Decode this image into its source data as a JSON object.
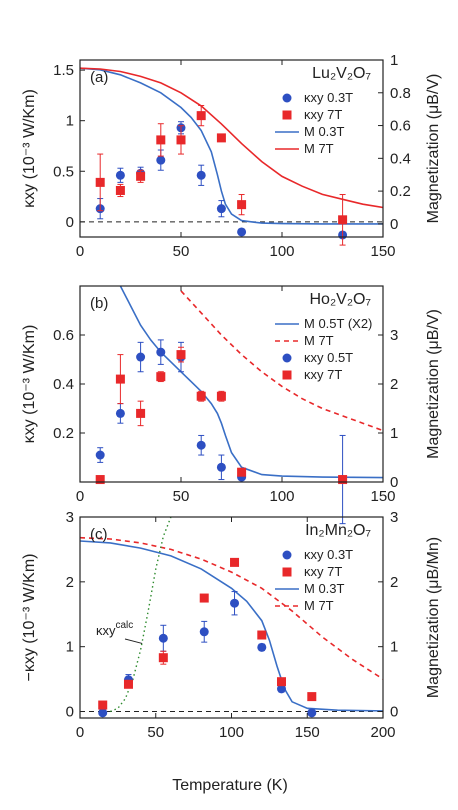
{
  "figure": {
    "xlabel": "Temperature (K)"
  },
  "chart_data": [
    {
      "type": "scatter",
      "panel_label": "(a)",
      "title": "Lu₂V₂O₇",
      "xlim": [
        0,
        150
      ],
      "ylim": [
        -0.15,
        1.6
      ],
      "y2lim": [
        -0.08,
        1.0
      ],
      "ylabel": "κxy (10⁻³ W/Km)",
      "y2label": "Magnetization (μB/V)",
      "xticks": [
        "0",
        "50",
        "100",
        "150"
      ],
      "yticks": [
        "0",
        "0.5",
        "1",
        "1.5"
      ],
      "y2ticks": [
        "0",
        "0.2",
        "0.4",
        "0.6",
        "0.8",
        "1"
      ],
      "zero_line": true,
      "legend_position": "top-right",
      "series": [
        {
          "name": "κxy 0.3T",
          "kind": "points",
          "marker": "circle",
          "color": "#2d4fc2",
          "axis": "left",
          "x": [
            10,
            20,
            30,
            40,
            50,
            60,
            70,
            80,
            130
          ],
          "y": [
            0.13,
            0.46,
            0.48,
            0.61,
            0.93,
            0.46,
            0.13,
            -0.1,
            -0.13
          ],
          "err": [
            0.1,
            0.07,
            0.06,
            0.1,
            0.06,
            0.1,
            0.08,
            0,
            0
          ]
        },
        {
          "name": "κxy 7T",
          "kind": "points",
          "marker": "square",
          "color": "#e8282a",
          "axis": "left",
          "x": [
            10,
            20,
            30,
            40,
            50,
            60,
            70,
            80,
            130
          ],
          "y": [
            0.39,
            0.31,
            0.45,
            0.81,
            0.81,
            1.05,
            0.83,
            0.17,
            0.02
          ],
          "err": [
            0.28,
            0.06,
            0.06,
            0.16,
            0.14,
            0.1,
            0,
            0.1,
            0.25
          ]
        },
        {
          "name": "M 0.3T",
          "kind": "line",
          "color": "#3a6fc6",
          "dash": false,
          "axis": "right",
          "x": [
            0,
            10,
            20,
            30,
            40,
            50,
            55,
            60,
            65,
            68,
            70,
            72,
            75,
            80,
            90,
            100,
            120,
            150
          ],
          "y": [
            0.95,
            0.94,
            0.91,
            0.86,
            0.8,
            0.71,
            0.65,
            0.57,
            0.44,
            0.3,
            0.2,
            0.12,
            0.06,
            0.02,
            0.005,
            0.002,
            0.0,
            0.0
          ]
        },
        {
          "name": "M 7T",
          "kind": "line",
          "color": "#e8282a",
          "dash": false,
          "axis": "right",
          "x": [
            0,
            10,
            20,
            30,
            40,
            50,
            60,
            70,
            80,
            90,
            100,
            110,
            120,
            130,
            140,
            150
          ],
          "y": [
            0.95,
            0.945,
            0.93,
            0.9,
            0.86,
            0.8,
            0.72,
            0.61,
            0.49,
            0.38,
            0.29,
            0.23,
            0.18,
            0.15,
            0.12,
            0.1
          ]
        }
      ]
    },
    {
      "type": "scatter",
      "panel_label": "(b)",
      "title": "Ho₂V₂O₇",
      "xlim": [
        0,
        150
      ],
      "ylim": [
        0,
        0.8
      ],
      "y2lim": [
        0,
        4.0
      ],
      "ylabel": "κxy (10⁻³ W/Km)",
      "y2label": "Magnetization (μB/V)",
      "xticks": [
        "0",
        "50",
        "100",
        "150"
      ],
      "yticks": [
        "0.2",
        "0.4",
        "0.6"
      ],
      "y2ticks": [
        "0",
        "1",
        "2",
        "3"
      ],
      "zero_line": false,
      "legend_position": "top-right",
      "series": [
        {
          "name": "M 0.5T (X2)",
          "kind": "line",
          "color": "#3a6fc6",
          "dash": false,
          "axis": "right",
          "x": [
            20,
            25,
            30,
            35,
            40,
            45,
            50,
            55,
            60,
            65,
            68,
            70,
            72,
            75,
            80,
            90,
            100,
            120,
            150
          ],
          "y": [
            4.0,
            3.6,
            3.2,
            2.9,
            2.65,
            2.45,
            2.25,
            2.05,
            1.85,
            1.6,
            1.4,
            1.2,
            0.95,
            0.6,
            0.3,
            0.15,
            0.12,
            0.1,
            0.09
          ]
        },
        {
          "name": "M 7T",
          "kind": "line",
          "color": "#e8282a",
          "dash": true,
          "axis": "right",
          "x": [
            50,
            60,
            70,
            80,
            90,
            100,
            110,
            120,
            130,
            140,
            150
          ],
          "y": [
            3.9,
            3.45,
            3.0,
            2.6,
            2.25,
            1.95,
            1.7,
            1.5,
            1.35,
            1.2,
            1.05
          ]
        },
        {
          "name": "κxy 0.5T",
          "kind": "points",
          "marker": "circle",
          "color": "#2d4fc2",
          "axis": "left",
          "x": [
            10,
            20,
            30,
            40,
            50,
            60,
            70,
            80,
            130
          ],
          "y": [
            0.11,
            0.28,
            0.51,
            0.53,
            0.51,
            0.15,
            0.06,
            0.02,
            0.01
          ],
          "err": [
            0.03,
            0.04,
            0.06,
            0.05,
            0.06,
            0.04,
            0.05,
            0,
            0.18
          ]
        },
        {
          "name": "κxy 7T",
          "kind": "points",
          "marker": "square",
          "color": "#e8282a",
          "axis": "left",
          "x": [
            10,
            20,
            30,
            40,
            50,
            60,
            70,
            80,
            130
          ],
          "y": [
            0.01,
            0.42,
            0.28,
            0.43,
            0.52,
            0.35,
            0.35,
            0.04,
            0.01
          ],
          "err": [
            0,
            0.1,
            0.05,
            0.02,
            0.03,
            0.02,
            0.02,
            0,
            0
          ]
        }
      ]
    },
    {
      "type": "scatter",
      "panel_label": "(c)",
      "title": "In₂Mn₂O₇",
      "xlim": [
        0,
        200
      ],
      "ylim": [
        -0.1,
        3.0
      ],
      "y2lim": [
        -0.1,
        3.0
      ],
      "ylabel": "−κxy (10⁻³ W/Km)",
      "y2label": "Magnetization (μB/Mn)",
      "xticks": [
        "0",
        "50",
        "100",
        "150",
        "200"
      ],
      "yticks": [
        "0",
        "1",
        "2",
        "3"
      ],
      "y2ticks": [
        "0",
        "1",
        "2",
        "3"
      ],
      "zero_line": true,
      "legend_position": "top-right",
      "annotation": {
        "text": "κxy",
        "sup": "calc",
        "color": "#2e8b2e"
      },
      "series": [
        {
          "name": "κxy 0.3T",
          "kind": "points",
          "marker": "circle",
          "color": "#2d4fc2",
          "axis": "left",
          "x": [
            15,
            32,
            55,
            82,
            102,
            120,
            133,
            153
          ],
          "y": [
            -0.02,
            0.49,
            1.13,
            1.23,
            1.67,
            0.99,
            0.35,
            -0.02
          ],
          "err": [
            0,
            0.08,
            0.2,
            0.16,
            0.18,
            0.05,
            0.05,
            0
          ]
        },
        {
          "name": "κxy 7T",
          "kind": "points",
          "marker": "square",
          "color": "#e8282a",
          "axis": "left",
          "x": [
            15,
            32,
            55,
            82,
            102,
            120,
            133,
            153
          ],
          "y": [
            0.1,
            0.42,
            0.83,
            1.75,
            2.3,
            1.18,
            0.46,
            0.23
          ],
          "err": [
            0,
            0,
            0.1,
            0,
            0,
            0,
            0,
            0
          ]
        },
        {
          "name": "M 0.3T",
          "kind": "line",
          "color": "#3a6fc6",
          "dash": false,
          "axis": "right",
          "x": [
            0,
            20,
            40,
            60,
            80,
            100,
            110,
            120,
            125,
            130,
            135,
            140,
            150,
            170,
            200
          ],
          "y": [
            2.63,
            2.6,
            2.52,
            2.4,
            2.2,
            1.9,
            1.7,
            1.4,
            1.1,
            0.7,
            0.35,
            0.15,
            0.05,
            0.02,
            0.01
          ]
        },
        {
          "name": "M 7T",
          "kind": "line",
          "color": "#e8282a",
          "dash": true,
          "axis": "right",
          "x": [
            0,
            20,
            40,
            60,
            80,
            100,
            120,
            140,
            160,
            180,
            200
          ],
          "y": [
            2.68,
            2.66,
            2.6,
            2.5,
            2.35,
            2.15,
            1.9,
            1.55,
            1.15,
            0.8,
            0.5
          ]
        },
        {
          "name": "κxy calc",
          "kind": "line",
          "color": "#2e8b2e",
          "dash": "dot",
          "axis": "left",
          "legend": false,
          "x": [
            20,
            25,
            30,
            35,
            40,
            45,
            50,
            55,
            60
          ],
          "y": [
            0.0,
            0.05,
            0.2,
            0.5,
            0.95,
            1.55,
            2.2,
            2.7,
            3.0
          ]
        }
      ]
    }
  ]
}
